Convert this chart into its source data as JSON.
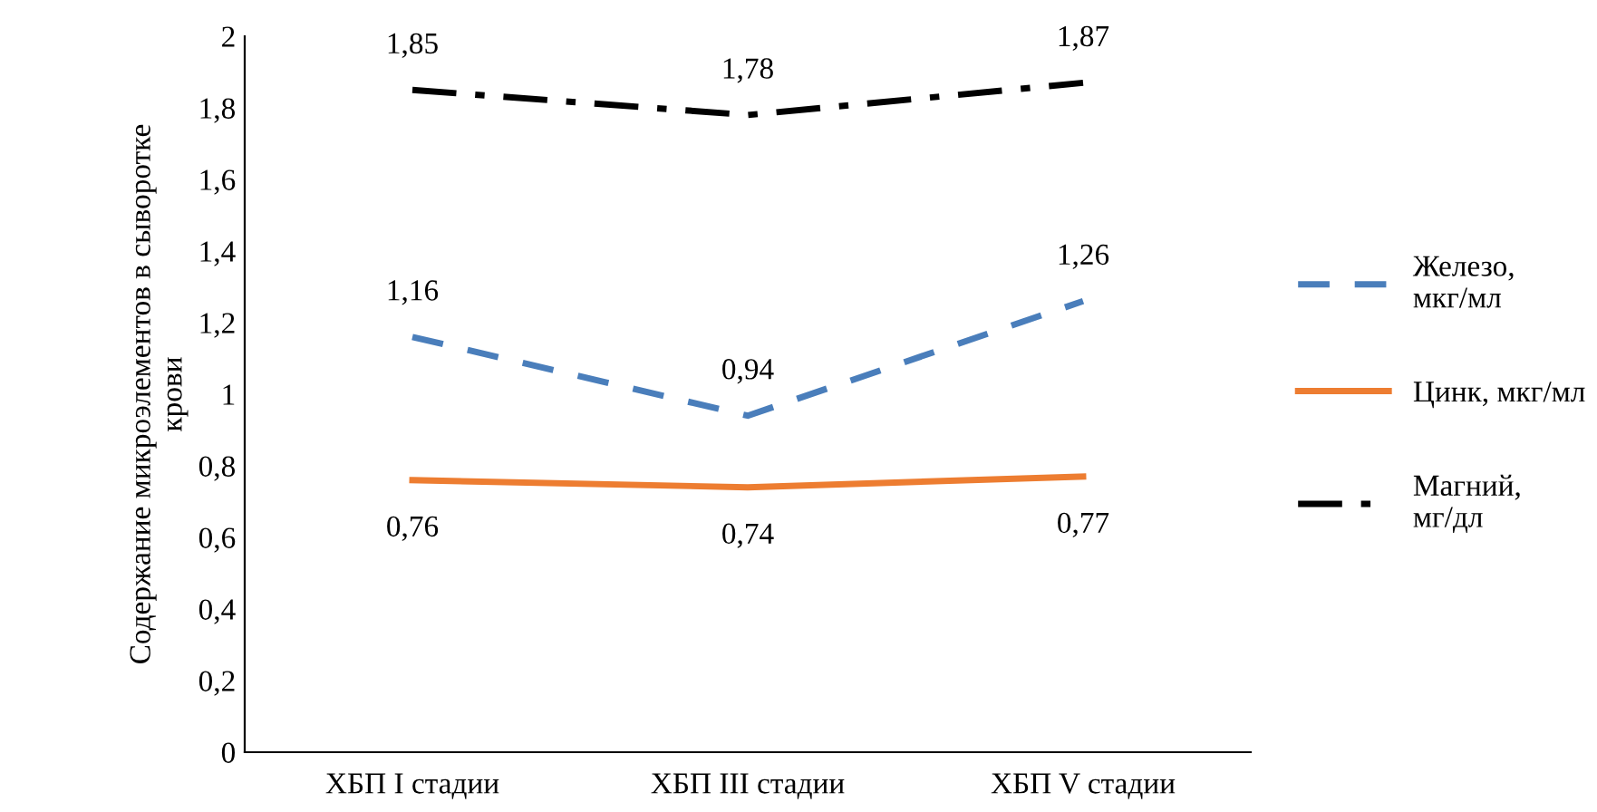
{
  "chart_data": {
    "type": "line",
    "ylabel": "Содержание микроэлементов в сыворотке\nкрови",
    "categories": [
      "ХБП I стадии",
      "ХБП III стадии",
      "ХБП V стадии"
    ],
    "series": [
      {
        "name": "Железо,\nмкг/мл",
        "color": "#4a7ebb",
        "line_style": "dashed",
        "values": [
          1.16,
          0.94,
          1.26
        ],
        "value_labels": [
          "1,16",
          "0,94",
          "1,26"
        ]
      },
      {
        "name": "Цинк, мкг/мл",
        "color": "#ed7d31",
        "line_style": "solid",
        "values": [
          0.76,
          0.74,
          0.77
        ],
        "value_labels": [
          "0,76",
          "0,74",
          "0,77"
        ]
      },
      {
        "name": "Магний,\nмг/дл",
        "color": "#000000",
        "line_style": "dashdot",
        "values": [
          1.85,
          1.78,
          1.87
        ],
        "value_labels": [
          "1,85",
          "1,78",
          "1,87"
        ]
      }
    ],
    "ylim": [
      0,
      2
    ],
    "yticks": [
      0,
      {
        "value": 0.2,
        "label": "0,2"
      },
      {
        "value": 0.4,
        "label": "0,4"
      },
      {
        "value": 0.6,
        "label": "0,6"
      },
      {
        "value": 0.8,
        "label": "0,8"
      },
      1,
      {
        "value": 1.2,
        "label": "1,2"
      },
      {
        "value": 1.4,
        "label": "1,4"
      },
      {
        "value": 1.6,
        "label": "1,6"
      },
      {
        "value": 1.8,
        "label": "1,8"
      },
      2
    ],
    "grid": false,
    "legend": "right",
    "marker": "none"
  }
}
